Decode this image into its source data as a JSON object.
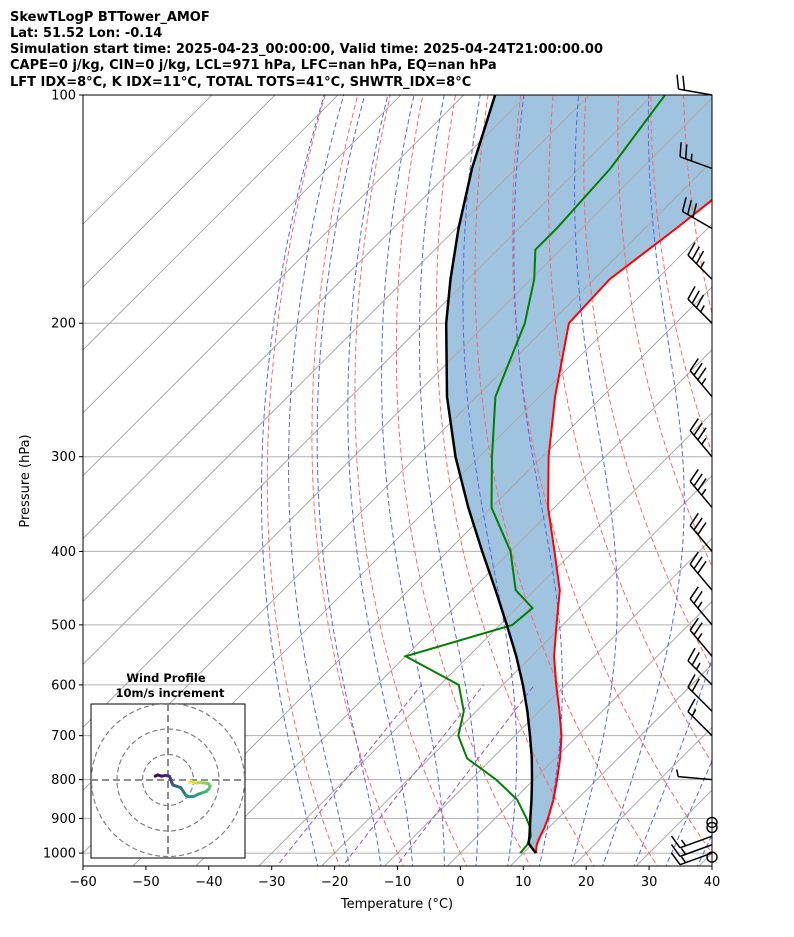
{
  "chart_data": {
    "type": "line",
    "header_lines": [
      "SkewTLogP BTTower_AMOF",
      "Lat: 51.52   Lon: -0.14",
      "Simulation start time: 2025-04-23_00:00:00, Valid time: 2025-04-24T21:00:00.00",
      "CAPE=0 j/kg, CIN=0 j/kg, LCL=971 hPa, LFC=nan hPa, EQ=nan hPa",
      "LFT IDX=8°C, K IDX=11°C, TOTAL TOTS=41°C, SHWTR_IDX=8°C"
    ],
    "xlabel": "Temperature (°C)",
    "ylabel": "Pressure (hPa)",
    "xlim": [
      -60,
      40
    ],
    "ylim": [
      1040,
      100
    ],
    "yscale": "log",
    "skew": true,
    "grid": true,
    "x_ticks": [
      -60,
      -50,
      -40,
      -30,
      -20,
      -10,
      0,
      10,
      20,
      30,
      40
    ],
    "x_tick_labels": [
      "−60",
      "−50",
      "−40",
      "−30",
      "−20",
      "−10",
      "0",
      "10",
      "20",
      "30",
      "40"
    ],
    "y_ticks": [
      1000,
      900,
      800,
      700,
      600,
      500,
      400,
      300,
      200,
      100
    ],
    "y_tick_labels": [
      "1000",
      "900",
      "800",
      "700",
      "600",
      "500",
      "400",
      "300",
      "200",
      "100"
    ],
    "colors": {
      "temperature": "#ff0000",
      "dewpoint": "#008000",
      "parcel": "#000000",
      "shade": "#a0c4df",
      "dry_adiabat": "#ff6666",
      "moist_adiabat": "#5566ee",
      "isotherm": "#aaaaaa",
      "mixing_ratio": "#9955cc"
    },
    "temperature": {
      "p": [
        1000,
        975,
        950,
        925,
        900,
        850,
        800,
        750,
        700,
        650,
        600,
        550,
        500,
        450,
        400,
        350,
        300,
        250,
        200,
        175,
        150,
        125,
        100
      ],
      "t": [
        12.0,
        10.8,
        10.0,
        9.3,
        8.4,
        6.3,
        3.7,
        0.8,
        -2.6,
        -6.8,
        -11.5,
        -16.4,
        -21.0,
        -26.0,
        -33.0,
        -41.0,
        -49.0,
        -57.5,
        -67.0,
        -67.5,
        -65.0,
        -62.5,
        -62.0
      ]
    },
    "dewpoint": {
      "p": [
        1000,
        975,
        950,
        925,
        900,
        850,
        800,
        750,
        700,
        650,
        600,
        550,
        500,
        475,
        450,
        400,
        350,
        300,
        250,
        200,
        175,
        160,
        150,
        125,
        100
      ],
      "td": [
        9.5,
        9.3,
        8.5,
        7.0,
        5.0,
        0.5,
        -6.0,
        -14.0,
        -19.0,
        -22.0,
        -27.0,
        -40.0,
        -28.0,
        -27.5,
        -33.0,
        -40.0,
        -50.0,
        -58.0,
        -67.0,
        -74.0,
        -79.5,
        -84.0,
        -84.0,
        -85.0,
        -88.0
      ]
    },
    "parcel": {
      "p": [
        1000,
        971,
        950,
        900,
        850,
        800,
        750,
        700,
        650,
        600,
        550,
        500,
        450,
        400,
        350,
        300,
        250,
        200,
        175,
        150,
        125,
        100
      ],
      "t": [
        12.0,
        9.3,
        8.3,
        5.6,
        2.8,
        -0.3,
        -3.7,
        -7.6,
        -11.9,
        -16.8,
        -22.4,
        -28.9,
        -36.2,
        -44.5,
        -53.7,
        -63.8,
        -74.7,
        -86.5,
        -92.8,
        -99.6,
        -107.0,
        -115.0
      ]
    },
    "wind_barbs": [
      {
        "p": 1000,
        "speed_kt": 15,
        "dir_deg": 250
      },
      {
        "p": 975,
        "speed_kt": 15,
        "dir_deg": 250
      },
      {
        "p": 950,
        "speed_kt": 15,
        "dir_deg": 250
      },
      {
        "p": 925,
        "speed_kt": 0,
        "dir_deg": 0
      },
      {
        "p": 800,
        "speed_kt": 5,
        "dir_deg": 275
      },
      {
        "p": 700,
        "speed_kt": 15,
        "dir_deg": 315
      },
      {
        "p": 650,
        "speed_kt": 20,
        "dir_deg": 315
      },
      {
        "p": 600,
        "speed_kt": 25,
        "dir_deg": 315
      },
      {
        "p": 550,
        "speed_kt": 25,
        "dir_deg": 320
      },
      {
        "p": 500,
        "speed_kt": 25,
        "dir_deg": 320
      },
      {
        "p": 450,
        "speed_kt": 30,
        "dir_deg": 320
      },
      {
        "p": 400,
        "speed_kt": 30,
        "dir_deg": 320
      },
      {
        "p": 350,
        "speed_kt": 35,
        "dir_deg": 320
      },
      {
        "p": 300,
        "speed_kt": 35,
        "dir_deg": 320
      },
      {
        "p": 250,
        "speed_kt": 35,
        "dir_deg": 320
      },
      {
        "p": 200,
        "speed_kt": 35,
        "dir_deg": 315
      },
      {
        "p": 175,
        "speed_kt": 35,
        "dir_deg": 315
      },
      {
        "p": 150,
        "speed_kt": 30,
        "dir_deg": 300
      },
      {
        "p": 125,
        "speed_kt": 25,
        "dir_deg": 290
      },
      {
        "p": 100,
        "speed_kt": 20,
        "dir_deg": 280
      }
    ],
    "calm_markers_p": [
      1000,
      900
    ],
    "hodograph": {
      "title": "Wind Profile",
      "subtitle": "10m/s increment",
      "rings_ms": [
        10,
        20,
        30
      ],
      "points_uv": [
        [
          -5.0,
          1.5
        ],
        [
          -4.0,
          2.0
        ],
        [
          -2.5,
          1.5
        ],
        [
          -1.0,
          1.8
        ],
        [
          0.5,
          1.5
        ],
        [
          1.0,
          0.5
        ],
        [
          1.5,
          -1.0
        ],
        [
          2.0,
          -2.0
        ],
        [
          3.5,
          -2.5
        ],
        [
          5.0,
          -3.0
        ],
        [
          6.0,
          -4.5
        ],
        [
          7.0,
          -6.0
        ],
        [
          8.0,
          -6.5
        ],
        [
          10.0,
          -6.5
        ],
        [
          12.0,
          -5.5
        ],
        [
          13.5,
          -5.0
        ],
        [
          15.0,
          -4.5
        ],
        [
          16.0,
          -3.5
        ],
        [
          16.5,
          -2.5
        ],
        [
          16.0,
          -1.5
        ],
        [
          14.5,
          -1.2
        ],
        [
          12.5,
          -1.0
        ],
        [
          11.0,
          -1.2
        ],
        [
          10.0,
          -1.0
        ],
        [
          9.0,
          -0.5
        ],
        [
          8.5,
          -1.0
        ]
      ]
    }
  }
}
